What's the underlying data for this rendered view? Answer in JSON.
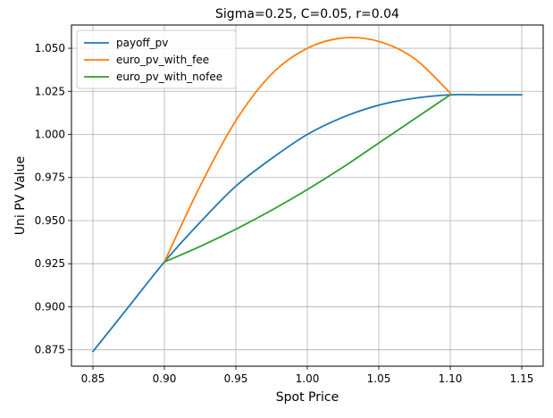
{
  "chart_data": {
    "type": "line",
    "title": "Sigma=0.25, C=0.05, r=0.04",
    "xlabel": "Spot Price",
    "ylabel": "Uni PV Value",
    "xlim": [
      0.835,
      1.165
    ],
    "ylim": [
      0.8655,
      1.0635
    ],
    "xticks": [
      0.85,
      0.9,
      0.95,
      1.0,
      1.05,
      1.1,
      1.15
    ],
    "xtick_labels": [
      "0.85",
      "0.90",
      "0.95",
      "1.00",
      "1.05",
      "1.10",
      "1.15"
    ],
    "yticks": [
      0.875,
      0.9,
      0.925,
      0.95,
      0.975,
      1.0,
      1.025,
      1.05
    ],
    "ytick_labels": [
      "0.875",
      "0.900",
      "0.925",
      "0.950",
      "0.975",
      "1.000",
      "1.025",
      "1.050"
    ],
    "grid": true,
    "legend_position": "top-left",
    "series": [
      {
        "name": "payoff_pv",
        "color": "#1f77b4",
        "x": [
          0.85,
          0.875,
          0.9,
          0.925,
          0.95,
          0.975,
          1.0,
          1.025,
          1.05,
          1.075,
          1.1,
          1.125,
          1.15
        ],
        "y": [
          0.874,
          0.9,
          0.926,
          0.949,
          0.97,
          0.986,
          1.0,
          1.01,
          1.017,
          1.021,
          1.023,
          1.023,
          1.023
        ]
      },
      {
        "name": "euro_pv_with_fee",
        "color": "#ff7f0e",
        "x": [
          0.9,
          0.925,
          0.95,
          0.975,
          1.0,
          1.025,
          1.05,
          1.075,
          1.1
        ],
        "y": [
          0.926,
          0.97,
          1.008,
          1.035,
          1.05,
          1.056,
          1.054,
          1.044,
          1.024
        ]
      },
      {
        "name": "euro_pv_with_nofee",
        "color": "#2ca02c",
        "x": [
          0.9,
          0.925,
          0.95,
          0.975,
          1.0,
          1.025,
          1.05,
          1.075,
          1.1
        ],
        "y": [
          0.926,
          0.935,
          0.945,
          0.956,
          0.968,
          0.981,
          0.995,
          1.009,
          1.023
        ]
      }
    ]
  }
}
